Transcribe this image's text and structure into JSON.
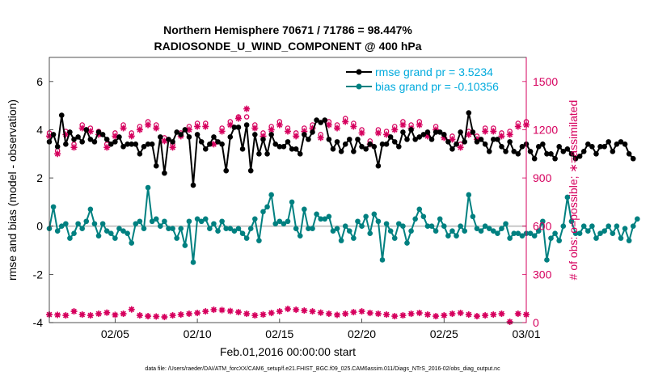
{
  "chart_data": {
    "type": "line",
    "title_line1": "Northern Hemisphere 70671 / 71786 = 98.447%",
    "title_line2": "RADIOSONDE_U_WIND_COMPONENT @ 400 hPa",
    "xlabel": "Feb.01,2016 00:00:00 start",
    "ylabel_left": "rmse and bias (model - observation)",
    "ylabel_right": "# of obs: o=possible; ∗=assimilated",
    "footer": "data file: /Users/raeder/DAI/ATM_forcXX/CAM6_setup/f.e21.FHIST_BGC.f09_025.CAM6assim.011/Diags_NTrS_2016-02/obs_diag_output.nc",
    "xlim": [
      1,
      30
    ],
    "ylim_left": [
      -4,
      7
    ],
    "ylim_right": [
      0,
      1650
    ],
    "x_tick_positions": [
      5,
      10,
      15,
      20,
      25,
      30
    ],
    "x_tick_labels": [
      "02/05",
      "02/10",
      "02/15",
      "02/20",
      "02/25",
      "03/01"
    ],
    "y_left_ticks": [
      -4,
      -2,
      0,
      2,
      4,
      6
    ],
    "y_right_ticks": [
      0,
      300,
      600,
      900,
      1200,
      1500
    ],
    "zero_line": 0,
    "legend": [
      {
        "label": "rmse grand pr = 3.5234",
        "color": "#000000"
      },
      {
        "label": "bias grand pr = -0.10356",
        "color": "#008080"
      }
    ],
    "colors": {
      "rmse": "#000000",
      "bias": "#008080",
      "obs": "#d6005e",
      "legend_text": "#00aadd",
      "zero_line": "#c8c8c8"
    },
    "series": [
      {
        "name": "rmse",
        "x_start": 1,
        "x_step": 0.25,
        "values": [
          3.5,
          3.8,
          3.3,
          4.6,
          3.4,
          3.9,
          3.6,
          3.7,
          3.5,
          4.0,
          3.6,
          3.5,
          3.9,
          3.8,
          3.6,
          3.4,
          3.5,
          3.7,
          3.3,
          3.4,
          3.4,
          3.4,
          3.0,
          3.3,
          3.4,
          3.4,
          2.5,
          3.7,
          2.2,
          3.6,
          3.5,
          3.9,
          3.8,
          4.0,
          3.7,
          1.7,
          3.8,
          3.5,
          3.2,
          3.4,
          3.7,
          3.5,
          3.4,
          2.3,
          3.7,
          4.1,
          4.1,
          3.2,
          4.2,
          2.3,
          3.8,
          3.0,
          3.6,
          3.0,
          3.8,
          3.4,
          3.3,
          3.3,
          3.5,
          3.2,
          3.2,
          3.0,
          3.8,
          3.6,
          3.9,
          4.4,
          4.3,
          4.4,
          3.6,
          3.2,
          3.5,
          3.1,
          3.4,
          3.6,
          3.1,
          3.6,
          3.3,
          3.2,
          3.4,
          3.3,
          2.5,
          3.4,
          3.4,
          3.7,
          3.5,
          3.3,
          3.9,
          3.6,
          4.0,
          3.6,
          3.7,
          3.8,
          3.9,
          3.6,
          3.9,
          3.9,
          3.8,
          3.5,
          3.2,
          3.4,
          3.9,
          3.5,
          4.7,
          3.9,
          3.5,
          3.6,
          3.4,
          3.1,
          3.6,
          3.6,
          3.3,
          3.1,
          3.5,
          3.1,
          3.0,
          3.3,
          3.4,
          3.1,
          2.8,
          3.3,
          3.4,
          3.0,
          3.0,
          2.8,
          3.3,
          3.1,
          3.2,
          3.0,
          2.8,
          2.9,
          3.1,
          3.4,
          3.3,
          3.0,
          3.3,
          3.3,
          3.5,
          3.1,
          3.4,
          3.5,
          3.4,
          3.0,
          2.8
        ]
      },
      {
        "name": "bias",
        "x_start": 1,
        "x_step": 0.25,
        "values": [
          -0.1,
          0.8,
          -0.2,
          0.0,
          0.1,
          -0.5,
          -0.3,
          0.1,
          -0.1,
          0.2,
          0.7,
          0.1,
          -0.4,
          0.1,
          -0.2,
          -0.3,
          -0.5,
          -0.1,
          -0.2,
          -0.3,
          -0.7,
          0.1,
          0.2,
          -0.1,
          1.6,
          0.2,
          0.3,
          0.0,
          0.2,
          -0.1,
          -0.1,
          -0.5,
          -0.1,
          -0.8,
          0.2,
          -1.5,
          0.3,
          0.2,
          0.3,
          -0.1,
          0.1,
          -0.2,
          0.2,
          -0.1,
          -0.1,
          -0.2,
          -0.1,
          -0.3,
          -0.5,
          -0.1,
          0.3,
          -0.6,
          0.6,
          0.8,
          1.3,
          0.1,
          0.2,
          0.1,
          0.2,
          1.0,
          -0.1,
          -0.4,
          0.7,
          -0.1,
          -0.1,
          0.5,
          0.3,
          0.3,
          0.4,
          -0.2,
          -0.1,
          -0.6,
          0.0,
          -0.2,
          -0.5,
          0.2,
          0.0,
          0.4,
          -0.3,
          0.5,
          0.2,
          -1.4,
          0.1,
          -0.2,
          -0.5,
          0.1,
          0.0,
          -0.7,
          -0.2,
          0.3,
          0.7,
          0.4,
          0.0,
          0.0,
          -0.2,
          0.3,
          0.0,
          -0.4,
          -0.2,
          -0.4,
          0.0,
          -0.2,
          1.3,
          0.4,
          -0.1,
          -0.2,
          0.0,
          -0.1,
          -0.2,
          -0.3,
          -0.1,
          0.1,
          -0.5,
          -0.3,
          -0.3,
          -0.4,
          -0.3,
          -0.3,
          -0.4,
          -0.2,
          0.2,
          -1.4,
          -0.5,
          -0.3,
          -0.6,
          0.0,
          1.2,
          0.2,
          -0.3,
          -0.3,
          0.0,
          -0.2,
          0.0,
          -0.5,
          -0.3,
          -0.2,
          0.0,
          -0.3,
          0.0,
          -0.5,
          -0.1,
          -0.6,
          0.0,
          0.3
        ]
      },
      {
        "name": "obs_possible",
        "axis": "right",
        "x_start": 1,
        "x_step": 0.5,
        "values": [
          1180,
          1070,
          1190,
          1110,
          1230,
          1210,
          1190,
          1110,
          1180,
          1230,
          1180,
          1220,
          1250,
          1230,
          1150,
          1110,
          1180,
          1220,
          1240,
          1240,
          1130,
          1210,
          1250,
          1280,
          1280,
          1230,
          1180,
          1220,
          1250,
          1210,
          1180,
          1210,
          1230,
          1170,
          1250,
          1230,
          1270,
          1240,
          1200,
          1130,
          1200,
          1190,
          1220,
          1250,
          1230,
          1250,
          1180,
          1220,
          1170,
          1160,
          1110,
          1190,
          1160,
          1210,
          1210,
          1180,
          1190,
          1240,
          1250
        ]
      },
      {
        "name": "obs_assimilated",
        "axis": "right",
        "x_start": 1,
        "x_step": 0.5,
        "values": [
          1160,
          1050,
          1170,
          1090,
          1210,
          1190,
          1170,
          1090,
          1160,
          1210,
          1160,
          1200,
          1230,
          1210,
          1130,
          1090,
          1160,
          1200,
          1220,
          1220,
          1110,
          1190,
          1230,
          1270,
          1330,
          1210,
          1160,
          1200,
          1230,
          1190,
          1160,
          1190,
          1210,
          1150,
          1230,
          1210,
          1250,
          1220,
          1180,
          1110,
          1180,
          1170,
          1200,
          1230,
          1210,
          1230,
          1160,
          1200,
          1150,
          1140,
          1090,
          1170,
          1140,
          1190,
          1190,
          1160,
          1170,
          1220,
          1230
        ]
      },
      {
        "name": "obs_bottom",
        "axis": "right",
        "x_start": 1,
        "x_step": 0.5,
        "values": [
          50,
          48,
          45,
          70,
          50,
          45,
          55,
          62,
          48,
          55,
          82,
          45,
          40,
          38,
          35,
          45,
          50,
          55,
          60,
          70,
          80,
          78,
          72,
          65,
          55,
          45,
          50,
          60,
          70,
          85,
          80,
          75,
          70,
          62,
          55,
          48,
          55,
          65,
          70,
          60,
          55,
          50,
          40,
          45,
          55,
          60,
          50,
          40,
          45,
          55,
          60,
          50,
          40,
          45,
          50,
          55,
          0,
          55,
          50
        ]
      }
    ]
  }
}
